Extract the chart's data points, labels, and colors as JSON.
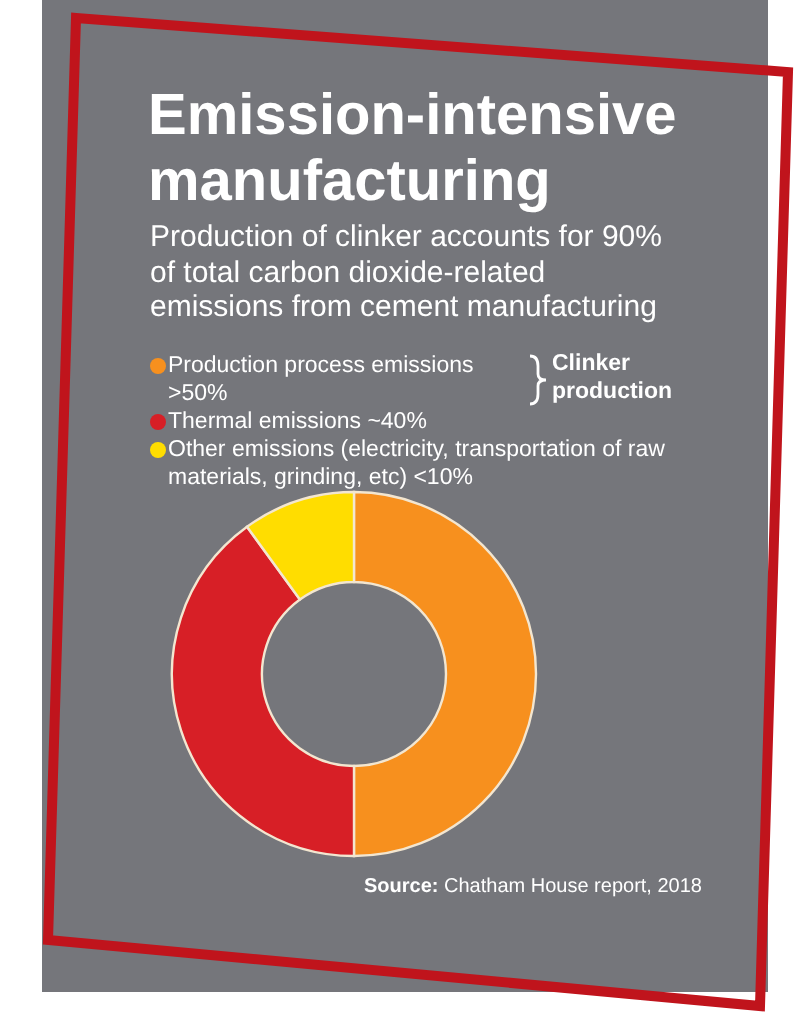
{
  "chart_data": {
    "type": "donut",
    "title": "Emission-intensive manufacturing",
    "subtitle": "Production of clinker accounts for 90% of total carbon dioxide-related emissions from cement manufacturing",
    "categories": [
      "Production process emissions >50%",
      "Thermal emissions ~40%",
      "Other emissions (electricity, transportation of raw materials, grinding, etc) <10%"
    ],
    "values": [
      50,
      40,
      10
    ],
    "colors": [
      "#f7901e",
      "#d71f26",
      "#ffdd00"
    ],
    "legend": "top",
    "annotations": [
      "Clinker production",
      "Source: Chatham House report, 2018"
    ]
  }
}
